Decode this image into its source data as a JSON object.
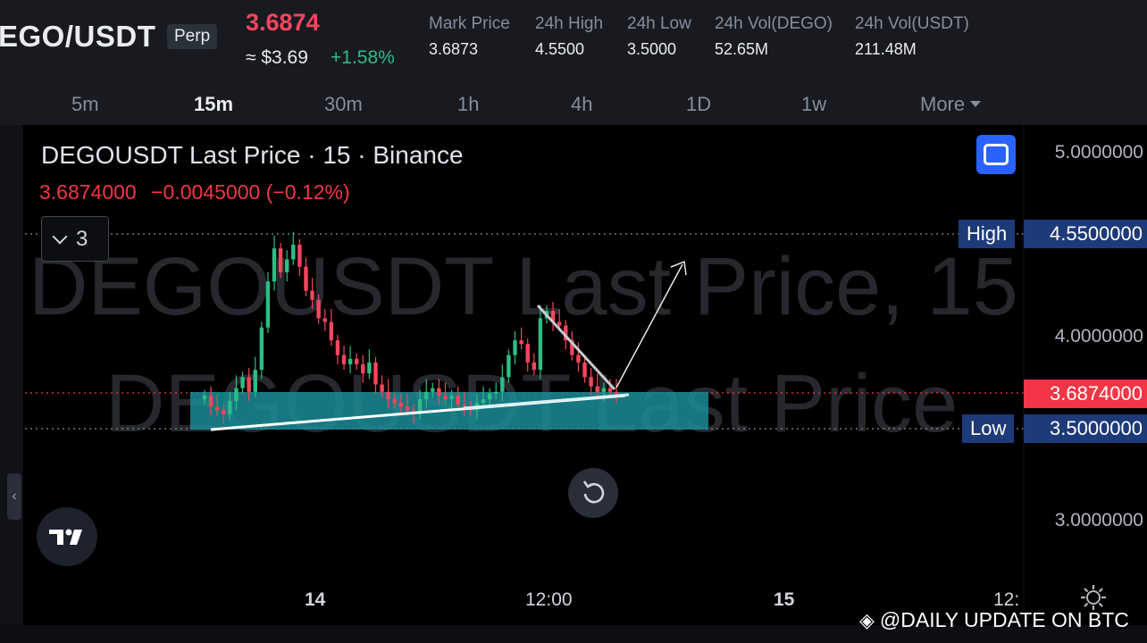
{
  "header": {
    "pair": "EGO/USDT",
    "perp_badge": "Perp",
    "last_price": "3.6874",
    "usd_price": "≈ $3.69",
    "change_pct": "+1.58%",
    "stats": [
      {
        "label": "Mark Price",
        "value": "3.6873"
      },
      {
        "label": "24h High",
        "value": "4.5500"
      },
      {
        "label": "24h Low",
        "value": "3.5000"
      },
      {
        "label": "24h Vol(DEGO)",
        "value": "52.65M"
      },
      {
        "label": "24h Vol(USDT)",
        "value": "211.48M"
      }
    ]
  },
  "tabs": [
    {
      "label": "5m",
      "active": false
    },
    {
      "label": "15m",
      "active": true
    },
    {
      "label": "30m",
      "active": false
    },
    {
      "label": "1h",
      "active": false
    },
    {
      "label": "4h",
      "active": false
    },
    {
      "label": "1D",
      "active": false
    },
    {
      "label": "1w",
      "active": false
    },
    {
      "label": "More",
      "active": false
    }
  ],
  "chart": {
    "legend_title": "DEGOUSDT Last Price · 15 · Binance",
    "legend_price": "3.6874000",
    "legend_change": "−0.0045000 (−0.12%)",
    "indicator_count": "3",
    "watermark_line1": "DEGOUSDT Last Price, 15",
    "watermark_line2": "DEGOUSDT Last Price",
    "collapse_glyph": "‹",
    "price_axis": [
      "5.0000000",
      "4.0000000",
      "3.0000000"
    ],
    "high_label": "High",
    "high_value": "4.5500000",
    "low_label": "Low",
    "low_value": "3.5000000",
    "current_value": "3.6874000",
    "time_axis": [
      "14",
      "12:00",
      "15",
      "12:"
    ],
    "credit": "@DAILY UPDATE ON BTC",
    "colors": {
      "up": "#2ebd85",
      "down": "#f6465d",
      "zone": "#1a8c96",
      "current_tag": "#f23645",
      "high_low_tag": "#1e3a78"
    },
    "icons": [
      "chevron-down-icon",
      "fullscreen-icon",
      "reset-icon",
      "tradingview-logo",
      "settings-gear-icon",
      "collapse-icon"
    ]
  },
  "chart_data": {
    "type": "candlestick",
    "title": "DEGOUSDT Last Price · 15 · Binance",
    "interval": "15",
    "y_ticks": [
      5.0,
      4.0,
      3.0
    ],
    "x_ticks": [
      "14",
      "12:00",
      "15"
    ],
    "high_line": 4.55,
    "low_line": 3.5,
    "last_price": 3.6874,
    "support_zone": [
      3.5,
      3.7
    ],
    "series": [
      {
        "name": "DEGOUSDT",
        "values": [
          3.68,
          3.62,
          3.6,
          3.58,
          3.65,
          3.72,
          3.78,
          3.7,
          3.82,
          4.05,
          4.3,
          4.48,
          4.35,
          4.42,
          4.5,
          4.38,
          4.25,
          4.2,
          4.1,
          4.08,
          3.98,
          3.9,
          3.85,
          3.88,
          3.85,
          3.8,
          3.86,
          3.74,
          3.7,
          3.66,
          3.64,
          3.62,
          3.6,
          3.58,
          3.66,
          3.7,
          3.72,
          3.68,
          3.66,
          3.68,
          3.63,
          3.62,
          3.6,
          3.64,
          3.66,
          3.69,
          3.7,
          3.78,
          3.9,
          3.98,
          3.96,
          3.86,
          3.82,
          4.1,
          4.14,
          4.08,
          4.06,
          3.98,
          3.9,
          3.86,
          3.78,
          3.73,
          3.7,
          3.72,
          3.7,
          3.69
        ]
      }
    ]
  }
}
